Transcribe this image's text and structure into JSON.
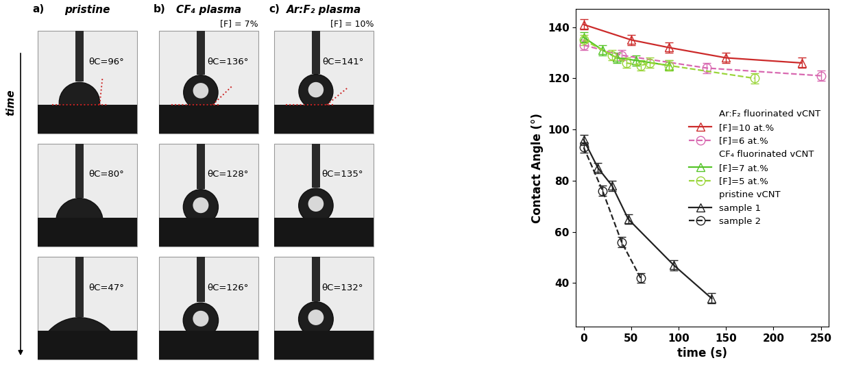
{
  "panels": [
    {
      "letter": "a)",
      "title": "pristine",
      "angles": [
        {
          "value": 96,
          "label": "θC=96°"
        },
        {
          "value": 80,
          "label": "θC=80°"
        },
        {
          "value": 47,
          "label": "θC=47°"
        }
      ]
    },
    {
      "letter": "b)",
      "title": "CF₄ plasma",
      "fluorine": "[F] = 7%",
      "angles": [
        {
          "value": 136,
          "label": "θC=136°"
        },
        {
          "value": 128,
          "label": "θC=128°"
        },
        {
          "value": 126,
          "label": "θC=126°"
        }
      ]
    },
    {
      "letter": "c)",
      "title": "Ar:F₂ plasma",
      "fluorine": "[F] = 10%",
      "angles": [
        {
          "value": 141,
          "label": "θC=141°"
        },
        {
          "value": 135,
          "label": "θC=135°"
        },
        {
          "value": 132,
          "label": "θC=132°"
        }
      ]
    }
  ],
  "time_label": "time",
  "chart_data": {
    "type": "line",
    "x_label": "time (s)",
    "y_label": "Contact Angle (°)",
    "xlim": [
      -8,
      258
    ],
    "ylim": [
      23,
      147
    ],
    "xticks": [
      0,
      50,
      100,
      150,
      200,
      250
    ],
    "yticks": [
      40,
      60,
      80,
      100,
      120,
      140
    ],
    "legend": "center right",
    "groups": [
      {
        "title": "Ar:F₂ fluorinated vCNT",
        "series": [
          {
            "name": "[F]=10 at.%",
            "color": "#cc2a2a",
            "marker": "triangle",
            "line_style": "solid",
            "x": [
              0,
              50,
              90,
              150,
              230
            ],
            "values": [
              141,
              135,
              132,
              128,
              126
            ],
            "errors": [
              2,
              2,
              2,
              2,
              2
            ]
          },
          {
            "name": "[F]=6 at.%",
            "color": "#d868b0",
            "marker": "circle",
            "line_style": "dashed",
            "x": [
              0,
              40,
              130,
              250
            ],
            "values": [
              133,
              129,
              124,
              121
            ],
            "errors": [
              2,
              2,
              2,
              2
            ]
          }
        ]
      },
      {
        "title": "CF₄ fluorinated vCNT",
        "series": [
          {
            "name": "[F]=7 at.%",
            "color": "#55c428",
            "marker": "triangle",
            "line_style": "solid",
            "x": [
              0,
              20,
              35,
              55,
              90
            ],
            "values": [
              136,
              131,
              128,
              127,
              125
            ],
            "errors": [
              2,
              2,
              2,
              2,
              2
            ]
          },
          {
            "name": "[F]=5 at.%",
            "color": "#9ad53a",
            "marker": "circle",
            "line_style": "dashed",
            "x": [
              0,
              30,
              45,
              60,
              70,
              90,
              180
            ],
            "values": [
              135,
              129,
              126,
              125,
              126,
              125,
              120
            ],
            "errors": [
              2,
              2,
              2,
              2,
              2,
              2,
              2
            ]
          }
        ]
      },
      {
        "title": "pristine vCNT",
        "series": [
          {
            "name": "sample 1",
            "color": "#222222",
            "marker": "triangle",
            "line_style": "solid",
            "x": [
              0,
              15,
              30,
              47,
              95,
              135
            ],
            "values": [
              96,
              85,
              78,
              65,
              47,
              34
            ],
            "errors": [
              2,
              2,
              2,
              2,
              2,
              2
            ]
          },
          {
            "name": "sample 2",
            "color": "#222222",
            "marker": "circle",
            "line_style": "dashed",
            "x": [
              0,
              20,
              40,
              60
            ],
            "values": [
              93,
              76,
              56,
              42
            ],
            "errors": [
              2,
              2,
              2,
              2
            ]
          }
        ]
      }
    ]
  }
}
